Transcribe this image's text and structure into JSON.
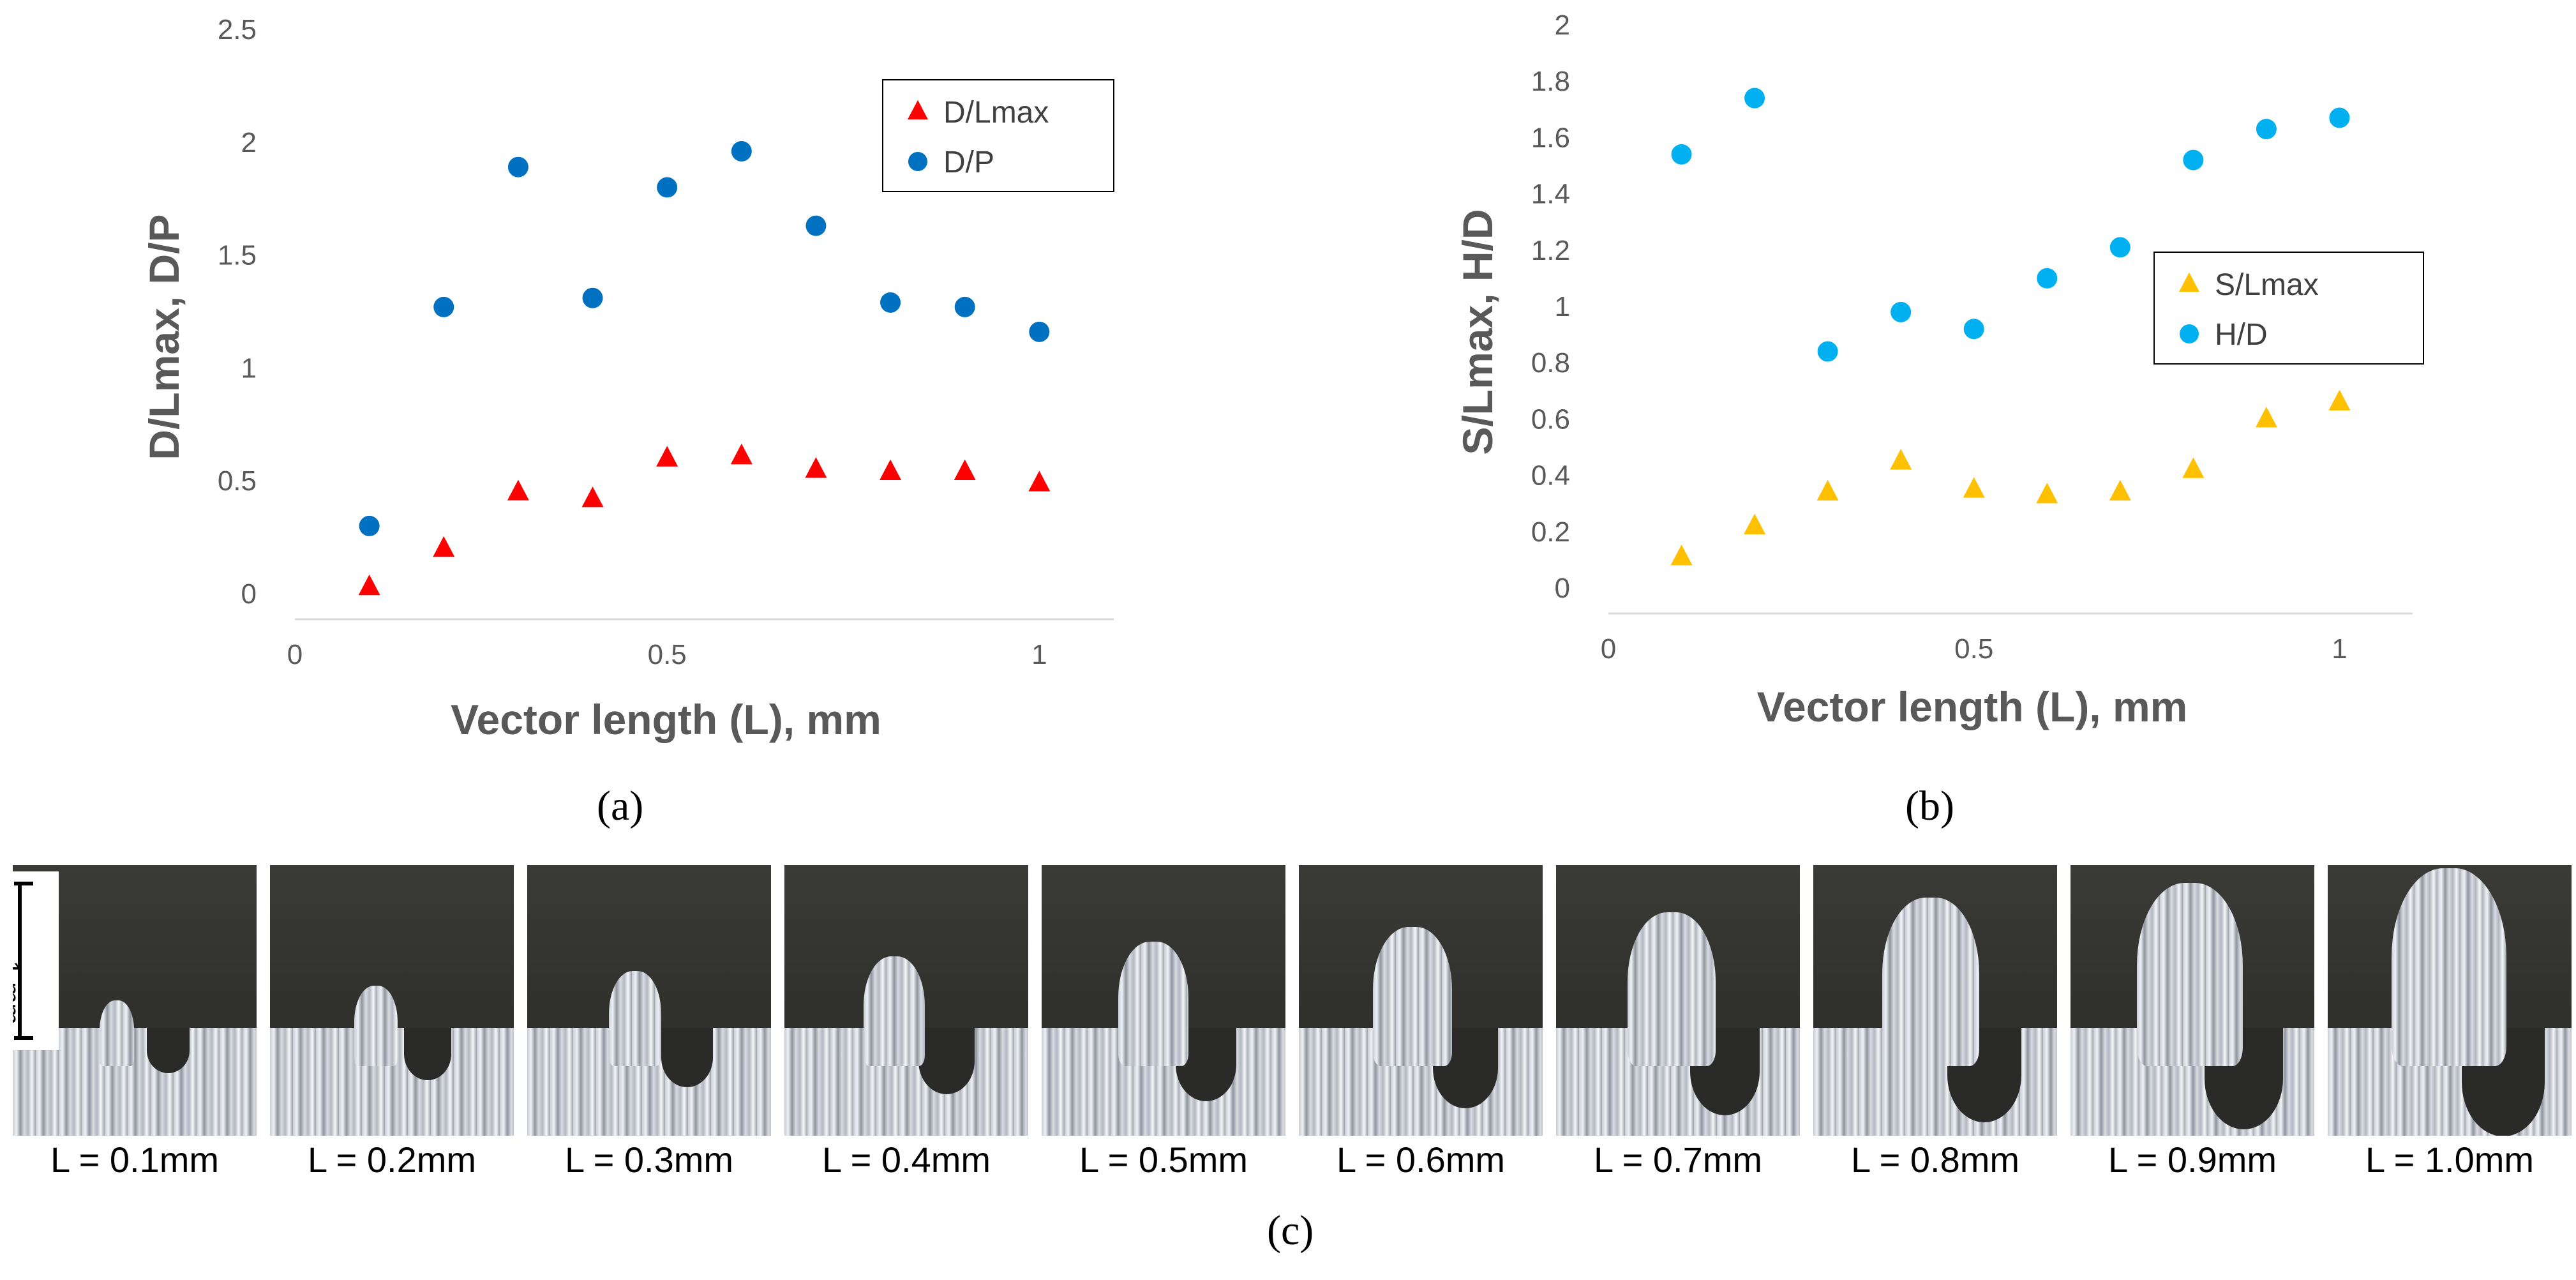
{
  "chart_data": [
    {
      "type": "scatter",
      "panel": "(a)",
      "xlabel": "Vector length (L), mm",
      "ylabel": "D/Lmax, D/P",
      "xlim": [
        0,
        1.1
      ],
      "ylim": [
        0,
        2.5
      ],
      "xticks": [
        "0",
        "0.5",
        "1"
      ],
      "xtick_values": [
        0,
        0.5,
        1
      ],
      "yticks": [
        "0",
        "0.5",
        "1",
        "1.5",
        "2",
        "2.5"
      ],
      "ytick_values": [
        0,
        0.5,
        1,
        1.5,
        2,
        2.5
      ],
      "legend_position": "top-right",
      "series": [
        {
          "name": "D/Lmax",
          "marker": "triangle",
          "color": "#ff0000",
          "x": [
            0.1,
            0.2,
            0.3,
            0.4,
            0.5,
            0.6,
            0.7,
            0.8,
            0.9,
            1.0
          ],
          "y": [
            0.03,
            0.2,
            0.45,
            0.42,
            0.6,
            0.61,
            0.55,
            0.54,
            0.54,
            0.49
          ]
        },
        {
          "name": "D/P",
          "marker": "circle",
          "color": "#0070c0",
          "x": [
            0.1,
            0.2,
            0.3,
            0.4,
            0.5,
            0.6,
            0.7,
            0.8,
            0.9,
            1.0
          ],
          "y": [
            0.3,
            1.27,
            1.89,
            1.31,
            1.8,
            1.96,
            1.63,
            1.29,
            1.27,
            1.16
          ]
        }
      ]
    },
    {
      "type": "scatter",
      "panel": "(b)",
      "xlabel": "Vector length (L), mm",
      "ylabel": "S/Lmax, H/D",
      "xlim": [
        0,
        1.1
      ],
      "ylim": [
        0,
        2
      ],
      "xticks": [
        "0",
        "0.5",
        "1"
      ],
      "xtick_values": [
        0,
        0.5,
        1
      ],
      "yticks": [
        "0",
        "0.2",
        "0.4",
        "0.6",
        "0.8",
        "1",
        "1.2",
        "1.4",
        "1.6",
        "1.8",
        "2"
      ],
      "ytick_values": [
        0,
        0.2,
        0.4,
        0.6,
        0.8,
        1,
        1.2,
        1.4,
        1.6,
        1.8,
        2
      ],
      "legend_position": "right",
      "series": [
        {
          "name": "S/Lmax",
          "marker": "triangle",
          "color": "#ffc000",
          "x": [
            0.1,
            0.2,
            0.3,
            0.4,
            0.5,
            0.6,
            0.7,
            0.8,
            0.9,
            1.0
          ],
          "y": [
            0.11,
            0.22,
            0.34,
            0.45,
            0.35,
            0.33,
            0.34,
            0.42,
            0.6,
            0.66
          ]
        },
        {
          "name": "H/D",
          "marker": "circle",
          "color": "#00b0f0",
          "x": [
            0.1,
            0.2,
            0.3,
            0.4,
            0.5,
            0.6,
            0.7,
            0.8,
            0.9,
            1.0
          ],
          "y": [
            1.54,
            1.74,
            0.84,
            0.98,
            0.92,
            1.1,
            1.21,
            1.52,
            1.63,
            1.67
          ]
        }
      ]
    }
  ],
  "panel_labels": {
    "a": "(a)",
    "b": "(b)",
    "c": "(c)"
  },
  "micrographs": {
    "scale_label": "1 mm",
    "images": [
      {
        "label": "L = 0.1mm",
        "length": 0.1
      },
      {
        "label": "L = 0.2mm",
        "length": 0.2
      },
      {
        "label": "L = 0.3mm",
        "length": 0.3
      },
      {
        "label": "L = 0.4mm",
        "length": 0.4
      },
      {
        "label": "L = 0.5mm",
        "length": 0.5
      },
      {
        "label": "L = 0.6mm",
        "length": 0.6
      },
      {
        "label": "L = 0.7mm",
        "length": 0.7
      },
      {
        "label": "L = 0.8mm",
        "length": 0.8
      },
      {
        "label": "L = 0.9mm",
        "length": 0.9
      },
      {
        "label": "L = 1.0mm",
        "length": 1.0
      }
    ]
  }
}
